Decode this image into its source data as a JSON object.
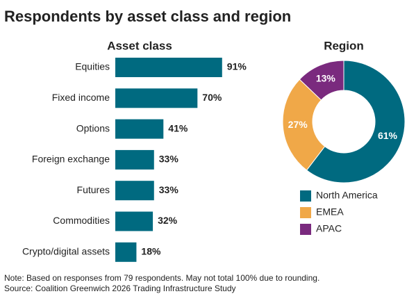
{
  "title": "Respondents by asset class and region",
  "notes": [
    "Note: Based on responses from 79 respondents. May not total 100% due to rounding.",
    "Source: Coalition Greenwich 2026 Trading Infrastructure Study"
  ],
  "chart_data": [
    {
      "type": "bar",
      "orientation": "horizontal",
      "title": "Asset class",
      "categories": [
        "Equities",
        "Fixed income",
        "Options",
        "Foreign exchange",
        "Futures",
        "Commodities",
        "Crypto/digital assets"
      ],
      "values": [
        91,
        70,
        41,
        33,
        33,
        32,
        18
      ],
      "value_labels": [
        "91%",
        "70%",
        "41%",
        "33%",
        "33%",
        "32%",
        "18%"
      ],
      "color": "#006a80"
    },
    {
      "type": "pie",
      "donut": true,
      "title": "Region",
      "categories": [
        "North America",
        "EMEA",
        "APAC"
      ],
      "values": [
        61,
        27,
        13
      ],
      "value_labels": [
        "61%",
        "27%",
        "13%"
      ],
      "colors": [
        "#006a80",
        "#f0a848",
        "#7a2a7e"
      ],
      "legend": "bottom"
    }
  ]
}
